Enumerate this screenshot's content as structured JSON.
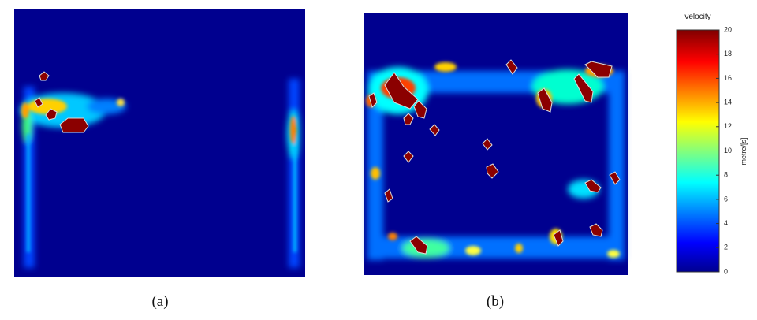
{
  "panels": [
    {
      "label": "(a)"
    },
    {
      "label": "(b)"
    }
  ],
  "colorbar": {
    "title": "velocity",
    "label": "metre/[s]",
    "lim": [
      0,
      20
    ],
    "ticks": [
      0,
      2,
      4,
      6,
      8,
      10,
      12,
      14,
      16,
      18,
      20
    ]
  }
}
